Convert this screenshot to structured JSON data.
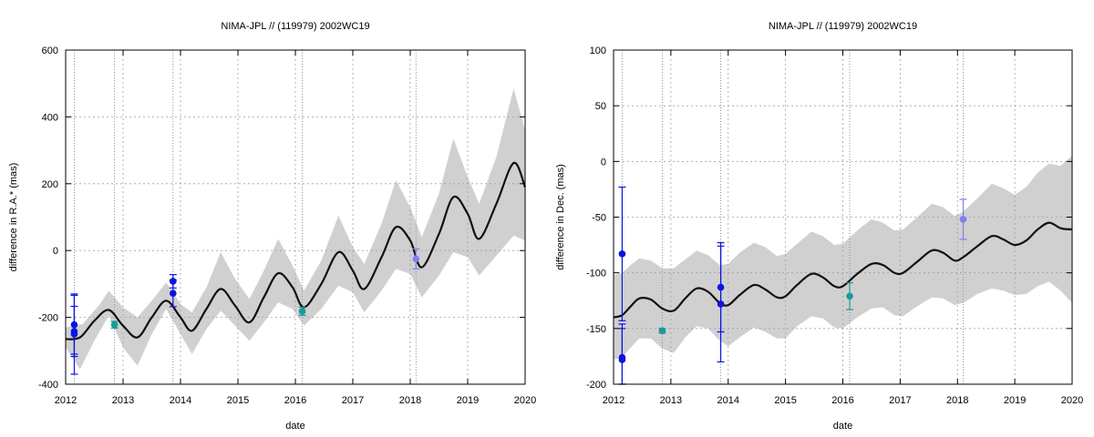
{
  "chart_data": [
    {
      "type": "line",
      "title": "NIMA-JPL // (119979) 2002WC19",
      "xlabel": "date",
      "ylabel": "difference in R.A.* (mas)",
      "xlim": [
        2012,
        2020
      ],
      "ylim": [
        -400,
        600
      ],
      "x_ticks": [
        "2012",
        "2013",
        "2014",
        "2015",
        "2016",
        "2017",
        "2018",
        "2019",
        "2020"
      ],
      "y_ticks": [
        "-400",
        "-200",
        "0",
        "200",
        "400",
        "600"
      ],
      "grid": true,
      "vertical_markers": [
        2012.15,
        2012.85,
        2013.87,
        2016.12,
        2018.1
      ],
      "colors": {
        "curve": "#111111",
        "band": "#d0d0d0",
        "blue": "#0a14e0",
        "teal": "#1a9a9a",
        "light_blue": "#7f7ff0"
      },
      "series": [
        {
          "type": "line",
          "points": [
            [
              2012.0,
              -265
            ],
            [
              2012.25,
              -260
            ],
            [
              2012.5,
              -210
            ],
            [
              2012.75,
              -178
            ],
            [
              2013.0,
              -225
            ],
            [
              2013.25,
              -260
            ],
            [
              2013.5,
              -200
            ],
            [
              2013.75,
              -150
            ],
            [
              2014.0,
              -200
            ],
            [
              2014.2,
              -240
            ],
            [
              2014.45,
              -175
            ],
            [
              2014.7,
              -115
            ],
            [
              2014.95,
              -165
            ],
            [
              2015.2,
              -215
            ],
            [
              2015.45,
              -140
            ],
            [
              2015.7,
              -68
            ],
            [
              2015.95,
              -110
            ],
            [
              2016.15,
              -170
            ],
            [
              2016.45,
              -100
            ],
            [
              2016.75,
              -5
            ],
            [
              2017.0,
              -60
            ],
            [
              2017.2,
              -115
            ],
            [
              2017.5,
              -20
            ],
            [
              2017.75,
              70
            ],
            [
              2018.0,
              30
            ],
            [
              2018.2,
              -50
            ],
            [
              2018.5,
              50
            ],
            [
              2018.75,
              160
            ],
            [
              2019.0,
              110
            ],
            [
              2019.2,
              35
            ],
            [
              2019.5,
              140
            ],
            [
              2019.8,
              262
            ],
            [
              2020.0,
              190
            ]
          ]
        },
        {
          "type": "area",
          "upper": [
            [
              2012.0,
              -230
            ],
            [
              2012.3,
              -220
            ],
            [
              2012.6,
              -160
            ],
            [
              2012.75,
              -120
            ],
            [
              2013.0,
              -170
            ],
            [
              2013.25,
              -200
            ],
            [
              2013.5,
              -150
            ],
            [
              2013.75,
              -95
            ],
            [
              2014.0,
              -160
            ],
            [
              2014.2,
              -185
            ],
            [
              2014.45,
              -110
            ],
            [
              2014.7,
              -5
            ],
            [
              2014.95,
              -85
            ],
            [
              2015.2,
              -145
            ],
            [
              2015.45,
              -60
            ],
            [
              2015.7,
              35
            ],
            [
              2015.95,
              -45
            ],
            [
              2016.15,
              -120
            ],
            [
              2016.45,
              -30
            ],
            [
              2016.75,
              105
            ],
            [
              2017.0,
              10
            ],
            [
              2017.2,
              -40
            ],
            [
              2017.5,
              80
            ],
            [
              2017.75,
              210
            ],
            [
              2018.0,
              130
            ],
            [
              2018.2,
              40
            ],
            [
              2018.5,
              170
            ],
            [
              2018.75,
              335
            ],
            [
              2019.0,
              220
            ],
            [
              2019.2,
              140
            ],
            [
              2019.5,
              280
            ],
            [
              2019.8,
              485
            ],
            [
              2020.0,
              360
            ]
          ],
          "lower": [
            [
              2012.0,
              -290
            ],
            [
              2012.25,
              -355
            ],
            [
              2012.5,
              -270
            ],
            [
              2012.75,
              -195
            ],
            [
              2013.0,
              -290
            ],
            [
              2013.25,
              -345
            ],
            [
              2013.5,
              -250
            ],
            [
              2013.75,
              -175
            ],
            [
              2014.0,
              -250
            ],
            [
              2014.2,
              -310
            ],
            [
              2014.45,
              -235
            ],
            [
              2014.7,
              -180
            ],
            [
              2014.95,
              -225
            ],
            [
              2015.2,
              -270
            ],
            [
              2015.45,
              -215
            ],
            [
              2015.7,
              -155
            ],
            [
              2015.95,
              -175
            ],
            [
              2016.15,
              -225
            ],
            [
              2016.45,
              -175
            ],
            [
              2016.75,
              -105
            ],
            [
              2017.0,
              -125
            ],
            [
              2017.2,
              -185
            ],
            [
              2017.5,
              -120
            ],
            [
              2017.75,
              -55
            ],
            [
              2018.0,
              -70
            ],
            [
              2018.2,
              -140
            ],
            [
              2018.5,
              -75
            ],
            [
              2018.75,
              -5
            ],
            [
              2019.0,
              -20
            ],
            [
              2019.2,
              -75
            ],
            [
              2019.5,
              -15
            ],
            [
              2019.8,
              45
            ],
            [
              2020.0,
              30
            ]
          ]
        },
        {
          "type": "scatter",
          "color_key": "blue",
          "points": [
            [
              2012.15,
              -222,
              88
            ],
            [
              2012.15,
              -242,
              75
            ],
            [
              2012.15,
              -250,
              120
            ],
            [
              2013.87,
              -92,
              20
            ],
            [
              2013.87,
              -128,
              40
            ]
          ]
        },
        {
          "type": "scatter",
          "color_key": "teal",
          "points": [
            [
              2012.85,
              -222,
              10
            ],
            [
              2016.12,
              -182,
              12
            ]
          ]
        },
        {
          "type": "scatter",
          "color_key": "light_blue",
          "points": [
            [
              2018.1,
              -25,
              30
            ]
          ]
        }
      ]
    },
    {
      "type": "line",
      "title": "NIMA-JPL // (119979) 2002WC19",
      "xlabel": "date",
      "ylabel": "difference in Dec. (mas)",
      "xlim": [
        2012,
        2020
      ],
      "ylim": [
        -200,
        100
      ],
      "x_ticks": [
        "2012",
        "2013",
        "2014",
        "2015",
        "2016",
        "2017",
        "2018",
        "2019",
        "2020"
      ],
      "y_ticks": [
        "-200",
        "-150",
        "-100",
        "-50",
        "0",
        "50",
        "100"
      ],
      "grid": true,
      "vertical_markers": [
        2012.15,
        2012.85,
        2013.87,
        2016.12,
        2018.1
      ],
      "colors": {
        "curve": "#111111",
        "band": "#d0d0d0",
        "blue": "#0a14e0",
        "teal": "#1a9a9a",
        "light_blue": "#7f7ff0"
      },
      "series": [
        {
          "type": "line",
          "points": [
            [
              2012.0,
              -140
            ],
            [
              2012.15,
              -138
            ],
            [
              2012.3,
              -130
            ],
            [
              2012.45,
              -123
            ],
            [
              2012.65,
              -124
            ],
            [
              2012.85,
              -132
            ],
            [
              2013.05,
              -134
            ],
            [
              2013.25,
              -123
            ],
            [
              2013.45,
              -114
            ],
            [
              2013.65,
              -117
            ],
            [
              2013.85,
              -127
            ],
            [
              2014.0,
              -129
            ],
            [
              2014.2,
              -120
            ],
            [
              2014.45,
              -111
            ],
            [
              2014.65,
              -115
            ],
            [
              2014.85,
              -122
            ],
            [
              2015.0,
              -121
            ],
            [
              2015.2,
              -111
            ],
            [
              2015.45,
              -101
            ],
            [
              2015.65,
              -104
            ],
            [
              2015.85,
              -112
            ],
            [
              2016.0,
              -112
            ],
            [
              2016.25,
              -101
            ],
            [
              2016.5,
              -92
            ],
            [
              2016.7,
              -93
            ],
            [
              2016.9,
              -100
            ],
            [
              2017.05,
              -100
            ],
            [
              2017.3,
              -90
            ],
            [
              2017.55,
              -80
            ],
            [
              2017.75,
              -82
            ],
            [
              2017.95,
              -89
            ],
            [
              2018.1,
              -86
            ],
            [
              2018.35,
              -76
            ],
            [
              2018.6,
              -67
            ],
            [
              2018.8,
              -70
            ],
            [
              2019.0,
              -75
            ],
            [
              2019.2,
              -71
            ],
            [
              2019.4,
              -61
            ],
            [
              2019.6,
              -55
            ],
            [
              2019.8,
              -60
            ],
            [
              2020.0,
              -61
            ]
          ]
        },
        {
          "type": "area",
          "upper": [
            [
              2012.0,
              -102
            ],
            [
              2012.15,
              -100
            ],
            [
              2012.3,
              -93
            ],
            [
              2012.45,
              -87
            ],
            [
              2012.65,
              -89
            ],
            [
              2012.85,
              -96
            ],
            [
              2013.05,
              -96
            ],
            [
              2013.25,
              -88
            ],
            [
              2013.45,
              -80
            ],
            [
              2013.65,
              -84
            ],
            [
              2013.85,
              -93
            ],
            [
              2014.0,
              -92
            ],
            [
              2014.2,
              -82
            ],
            [
              2014.45,
              -73
            ],
            [
              2014.65,
              -77
            ],
            [
              2014.85,
              -85
            ],
            [
              2015.0,
              -83
            ],
            [
              2015.2,
              -74
            ],
            [
              2015.45,
              -63
            ],
            [
              2015.65,
              -67
            ],
            [
              2015.85,
              -75
            ],
            [
              2016.0,
              -74
            ],
            [
              2016.25,
              -62
            ],
            [
              2016.5,
              -52
            ],
            [
              2016.7,
              -55
            ],
            [
              2016.9,
              -62
            ],
            [
              2017.05,
              -61
            ],
            [
              2017.3,
              -50
            ],
            [
              2017.55,
              -38
            ],
            [
              2017.75,
              -41
            ],
            [
              2017.95,
              -49
            ],
            [
              2018.1,
              -45
            ],
            [
              2018.35,
              -33
            ],
            [
              2018.6,
              -20
            ],
            [
              2018.8,
              -24
            ],
            [
              2019.0,
              -30
            ],
            [
              2019.2,
              -23
            ],
            [
              2019.4,
              -10
            ],
            [
              2019.6,
              -2
            ],
            [
              2019.8,
              -4
            ],
            [
              2020.0,
              5
            ]
          ],
          "lower": [
            [
              2012.0,
              -178
            ],
            [
              2012.15,
              -176
            ],
            [
              2012.3,
              -167
            ],
            [
              2012.45,
              -159
            ],
            [
              2012.65,
              -159
            ],
            [
              2012.85,
              -168
            ],
            [
              2013.05,
              -172
            ],
            [
              2013.25,
              -158
            ],
            [
              2013.45,
              -148
            ],
            [
              2013.65,
              -150
            ],
            [
              2013.85,
              -161
            ],
            [
              2014.0,
              -166
            ],
            [
              2014.2,
              -158
            ],
            [
              2014.45,
              -149
            ],
            [
              2014.65,
              -153
            ],
            [
              2014.85,
              -159
            ],
            [
              2015.0,
              -159
            ],
            [
              2015.2,
              -148
            ],
            [
              2015.45,
              -139
            ],
            [
              2015.65,
              -141
            ],
            [
              2015.85,
              -149
            ],
            [
              2016.0,
              -150
            ],
            [
              2016.25,
              -140
            ],
            [
              2016.5,
              -132
            ],
            [
              2016.7,
              -131
            ],
            [
              2016.9,
              -138
            ],
            [
              2017.05,
              -139
            ],
            [
              2017.3,
              -130
            ],
            [
              2017.55,
              -122
            ],
            [
              2017.75,
              -123
            ],
            [
              2017.95,
              -129
            ],
            [
              2018.1,
              -127
            ],
            [
              2018.35,
              -119
            ],
            [
              2018.6,
              -114
            ],
            [
              2018.8,
              -116
            ],
            [
              2019.0,
              -120
            ],
            [
              2019.2,
              -119
            ],
            [
              2019.4,
              -112
            ],
            [
              2019.6,
              -108
            ],
            [
              2019.8,
              -116
            ],
            [
              2020.0,
              -127
            ]
          ]
        },
        {
          "type": "scatter",
          "color_key": "blue",
          "points": [
            [
              2012.15,
              -83,
              60
            ],
            [
              2012.15,
              -176,
              30
            ],
            [
              2012.15,
              -178,
              28
            ],
            [
              2013.87,
              -113,
              40
            ],
            [
              2013.87,
              -128,
              52
            ]
          ]
        },
        {
          "type": "scatter",
          "color_key": "teal",
          "points": [
            [
              2012.85,
              -152,
              2
            ],
            [
              2016.12,
              -121,
              12
            ]
          ]
        },
        {
          "type": "scatter",
          "color_key": "light_blue",
          "points": [
            [
              2018.1,
              -52,
              18
            ]
          ]
        }
      ]
    }
  ]
}
